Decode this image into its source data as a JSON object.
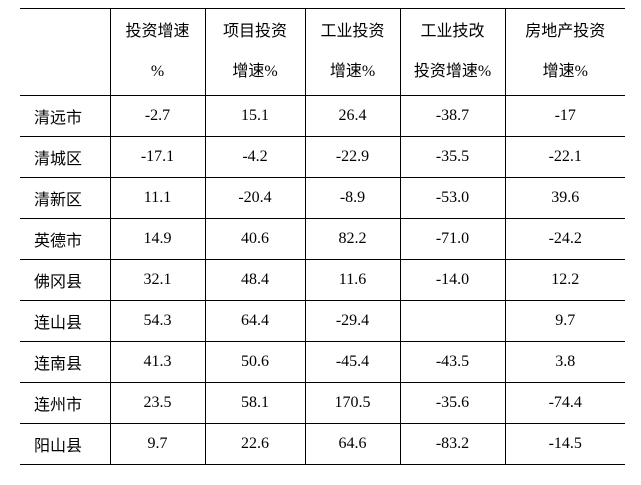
{
  "table": {
    "columns": [
      [
        "投资增速",
        "%"
      ],
      [
        "项目投资",
        "增速%"
      ],
      [
        "工业投资",
        "增速%"
      ],
      [
        "工业技改",
        "投资增速%"
      ],
      [
        "房地产投资",
        "增速%"
      ]
    ],
    "rows": [
      {
        "name": "清远市",
        "values": [
          "-2.7",
          "15.1",
          "26.4",
          "-38.7",
          "-17"
        ]
      },
      {
        "name": "清城区",
        "values": [
          "-17.1",
          "-4.2",
          "-22.9",
          "-35.5",
          "-22.1"
        ]
      },
      {
        "name": "清新区",
        "values": [
          "11.1",
          "-20.4",
          "-8.9",
          "-53.0",
          "39.6"
        ]
      },
      {
        "name": "英德市",
        "values": [
          "14.9",
          "40.6",
          "82.2",
          "-71.0",
          "-24.2"
        ]
      },
      {
        "name": "佛冈县",
        "values": [
          "32.1",
          "48.4",
          "11.6",
          "-14.0",
          "12.2"
        ]
      },
      {
        "name": "连山县",
        "values": [
          "54.3",
          "64.4",
          "-29.4",
          null,
          "9.7"
        ]
      },
      {
        "name": "连南县",
        "values": [
          "41.3",
          "50.6",
          "-45.4",
          "-43.5",
          "3.8"
        ]
      },
      {
        "name": "连州市",
        "values": [
          "23.5",
          "58.1",
          "170.5",
          "-35.6",
          "-74.4"
        ]
      },
      {
        "name": "阳山县",
        "values": [
          "9.7",
          "22.6",
          "64.6",
          "-83.2",
          "-14.5"
        ]
      }
    ]
  }
}
